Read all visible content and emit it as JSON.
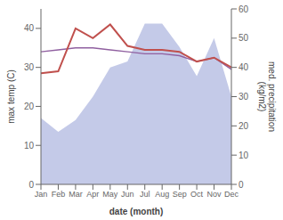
{
  "chart_data": {
    "type": "line",
    "categories": [
      "Jan",
      "Feb",
      "Mar",
      "Apr",
      "May",
      "Jun",
      "Jul",
      "Aug",
      "Sep",
      "Oct",
      "Nov",
      "Dec"
    ],
    "xlabel": "date (month)",
    "ylabel": "max temp (C)",
    "y2label": "med. precipitation\n(kg/m2)",
    "ylim": [
      0,
      45
    ],
    "yticks": [
      0,
      10,
      20,
      30,
      40
    ],
    "y2lim": [
      0,
      60
    ],
    "y2ticks": [
      0,
      10,
      20,
      30,
      40,
      50,
      60
    ],
    "grid": false,
    "series": [
      {
        "type": "area",
        "color": "#b0b8e0",
        "values": [
          17,
          13.5,
          16.5,
          22.5,
          30,
          31.5,
          41.25,
          41.25,
          35.25,
          27.75,
          37.5,
          22.5
        ]
      },
      {
        "type": "line",
        "color": "#9060a0",
        "values": [
          34.0,
          34.5,
          35.0,
          35.0,
          34.5,
          34.0,
          33.5,
          33.5,
          33.0,
          31.5,
          32.5,
          29.5
        ]
      },
      {
        "type": "line",
        "color": "#c0504d",
        "values": [
          28.5,
          29.0,
          40.0,
          37.5,
          41.0,
          35.5,
          34.5,
          34.5,
          34.0,
          31.5,
          32.5,
          30.0
        ]
      }
    ]
  }
}
